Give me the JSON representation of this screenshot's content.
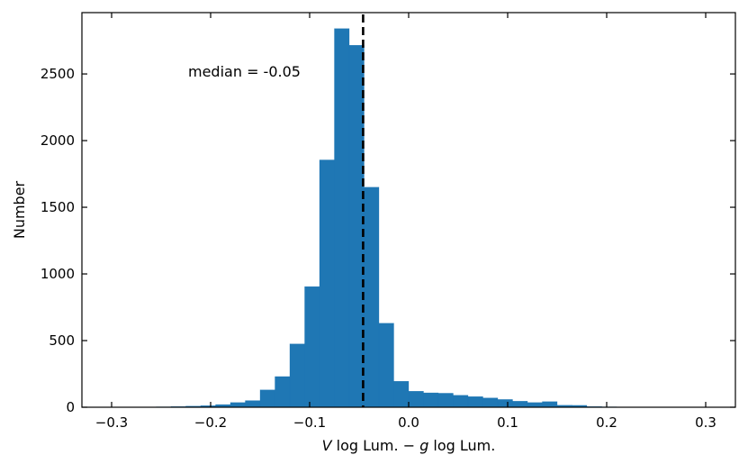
{
  "chart_data": {
    "type": "bar",
    "title": "",
    "xlabel": {
      "v": "V",
      "mid": " log Lum. − ",
      "g": "g",
      "tail": " log Lum."
    },
    "ylabel": "Number",
    "xlim": [
      -0.33,
      0.33
    ],
    "ylim": [
      0,
      2960
    ],
    "xticks": [
      -0.3,
      -0.2,
      -0.1,
      0.0,
      0.1,
      0.2,
      0.3
    ],
    "xtick_labels": [
      "−0.3",
      "−0.2",
      "−0.1",
      "0.0",
      "0.1",
      "0.2",
      "0.3"
    ],
    "yticks": [
      0,
      500,
      1000,
      1500,
      2000,
      2500
    ],
    "ytick_labels": [
      "0",
      "500",
      "1000",
      "1500",
      "2000",
      "2500"
    ],
    "bin_width": 0.015,
    "bin_edges_start": -0.3,
    "values": [
      0,
      0,
      0,
      3,
      5,
      8,
      12,
      20,
      35,
      50,
      130,
      230,
      475,
      905,
      1855,
      2840,
      2715,
      1650,
      630,
      195,
      120,
      108,
      105,
      90,
      80,
      70,
      58,
      45,
      35,
      42,
      15,
      14,
      5,
      3,
      2,
      1,
      0,
      0,
      0,
      0
    ],
    "bar_color": "#1f77b4",
    "median": -0.046,
    "median_line_style": "dashed black",
    "annotation": "median = -0.05",
    "grid": false
  }
}
